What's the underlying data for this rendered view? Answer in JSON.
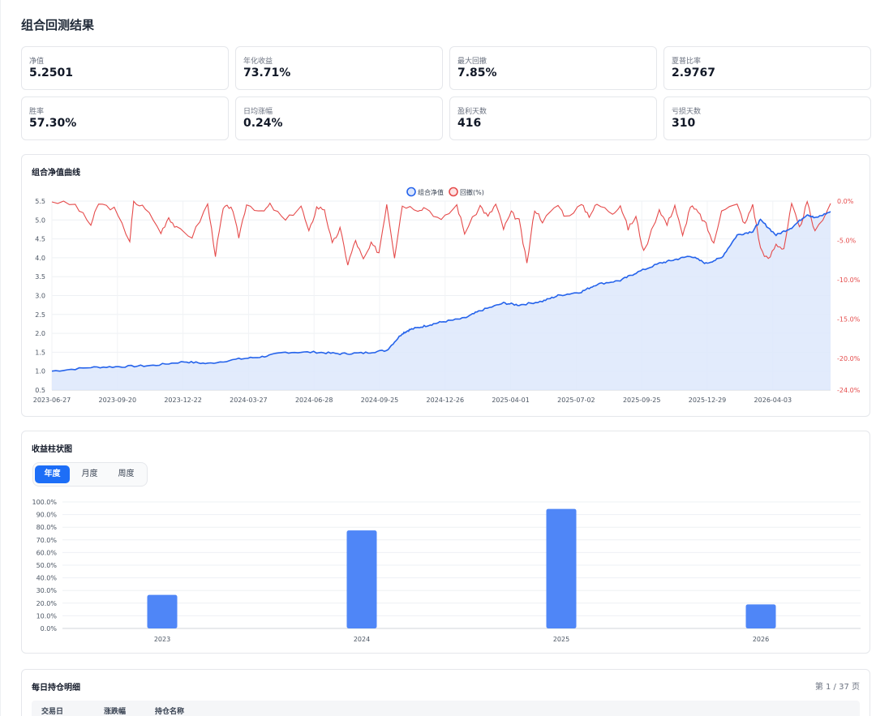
{
  "page": {
    "title": "组合回测结果"
  },
  "metrics": [
    {
      "label": "净值",
      "value": "5.2501"
    },
    {
      "label": "年化收益",
      "value": "73.71%"
    },
    {
      "label": "最大回撤",
      "value": "7.85%"
    },
    {
      "label": "夏普比率",
      "value": "2.9767"
    },
    {
      "label": "胜率",
      "value": "57.30%"
    },
    {
      "label": "日均涨幅",
      "value": "0.24%"
    },
    {
      "label": "盈利天数",
      "value": "416"
    },
    {
      "label": "亏损天数",
      "value": "310"
    }
  ],
  "nav_chart": {
    "title": "组合净值曲线",
    "legend": [
      "组合净值",
      "回撤(%)"
    ],
    "colors": {
      "nav": "#2563eb",
      "drawdown": "#e54b4b",
      "fill": "#dde7fb"
    }
  },
  "bar_section": {
    "title": "收益柱状图",
    "tabs": [
      "年度",
      "月度",
      "周度"
    ],
    "active_tab": "年度"
  },
  "holdings": {
    "title": "每日持仓明细",
    "pager": "第 1 / 37 页",
    "columns": [
      "交易日",
      "涨跌幅",
      "持仓名称"
    ]
  },
  "chart_data": [
    {
      "type": "line",
      "title": "组合净值曲线",
      "x_ticks": [
        "2023-06-27",
        "2023-09-20",
        "2023-12-22",
        "2024-03-27",
        "2024-06-28",
        "2024-09-25",
        "2024-12-26",
        "2025-04-01",
        "2025-07-02",
        "2025-09-25",
        "2025-12-29",
        "2026-04-03"
      ],
      "y_left_ticks": [
        "0.5",
        "1.0",
        "1.5",
        "2.0",
        "2.5",
        "3.0",
        "3.5",
        "4.0",
        "4.5",
        "5.0",
        "5.5"
      ],
      "y_left_range": [
        0.5,
        5.5
      ],
      "y_right_ticks": [
        "0.0%",
        "-5.0%",
        "-10.0%",
        "-15.0%",
        "-20.0%",
        "-24.0%"
      ],
      "y_right_range": [
        -24.0,
        0.0
      ],
      "grid": true,
      "legend_position": "top-center",
      "series": [
        {
          "name": "组合净值",
          "axis": "left",
          "area": true,
          "x": [
            0,
            0.05,
            0.09,
            0.13,
            0.17,
            0.2,
            0.24,
            0.27,
            0.3,
            0.34,
            0.37,
            0.4,
            0.43,
            0.45,
            0.46,
            0.48,
            0.5,
            0.53,
            0.55,
            0.58,
            0.6,
            0.63,
            0.65,
            0.68,
            0.7,
            0.73,
            0.75,
            0.78,
            0.8,
            0.82,
            0.84,
            0.86,
            0.88,
            0.9,
            0.91,
            0.93,
            0.95,
            0.97,
            0.98,
            1.0
          ],
          "values": [
            1.0,
            1.1,
            1.12,
            1.15,
            1.25,
            1.2,
            1.32,
            1.38,
            1.5,
            1.5,
            1.46,
            1.48,
            1.55,
            2.0,
            2.1,
            2.2,
            2.3,
            2.4,
            2.6,
            2.8,
            2.75,
            2.85,
            3.0,
            3.1,
            3.3,
            3.4,
            3.6,
            3.85,
            3.95,
            4.05,
            3.85,
            4.0,
            4.6,
            4.7,
            5.0,
            4.6,
            4.8,
            5.15,
            5.05,
            5.22
          ]
        },
        {
          "name": "回撤(%)",
          "axis": "right",
          "x": [
            0,
            0.03,
            0.05,
            0.06,
            0.08,
            0.1,
            0.105,
            0.12,
            0.14,
            0.15,
            0.16,
            0.18,
            0.2,
            0.21,
            0.22,
            0.23,
            0.24,
            0.25,
            0.27,
            0.28,
            0.3,
            0.32,
            0.33,
            0.34,
            0.35,
            0.36,
            0.37,
            0.38,
            0.39,
            0.4,
            0.41,
            0.42,
            0.43,
            0.44,
            0.45,
            0.47,
            0.48,
            0.5,
            0.52,
            0.53,
            0.55,
            0.56,
            0.57,
            0.58,
            0.59,
            0.6,
            0.61,
            0.62,
            0.63,
            0.65,
            0.66,
            0.68,
            0.69,
            0.7,
            0.72,
            0.73,
            0.74,
            0.75,
            0.76,
            0.78,
            0.79,
            0.8,
            0.81,
            0.82,
            0.83,
            0.84,
            0.85,
            0.86,
            0.88,
            0.89,
            0.9,
            0.91,
            0.92,
            0.93,
            0.94,
            0.95,
            0.96,
            0.97,
            0.98,
            1.0
          ],
          "values": [
            0,
            -0.5,
            -3.0,
            -0.3,
            -1.0,
            -5.0,
            -0.2,
            -0.8,
            -4.0,
            -2.0,
            -3.5,
            -4.5,
            -0.4,
            -6.8,
            -1.0,
            -0.6,
            -4.5,
            -0.3,
            -1.5,
            -0.5,
            -2.5,
            -0.6,
            -4.0,
            -0.8,
            -1.0,
            -5.5,
            -3.5,
            -8.0,
            -5.0,
            -7.5,
            -5.5,
            -6.5,
            -0.3,
            -7.0,
            -0.5,
            -1.0,
            -0.8,
            -2.5,
            -0.5,
            -4.0,
            -0.6,
            -2.0,
            -0.4,
            -3.5,
            -1.5,
            -2.5,
            -8.0,
            -1.0,
            -2.5,
            -0.5,
            -2.0,
            -0.5,
            -1.8,
            -0.4,
            -1.5,
            -0.5,
            -3.5,
            -2.0,
            -6.5,
            -1.0,
            -3.0,
            -0.5,
            -4.5,
            -0.6,
            -1.5,
            -3.0,
            -5.5,
            -1.0,
            -0.5,
            -3.0,
            -0.4,
            -6.0,
            -7.5,
            -5.5,
            -6.0,
            -0.4,
            -3.5,
            -0.2,
            -4.0,
            -0.3
          ]
        }
      ]
    },
    {
      "type": "bar",
      "title": "收益柱状图",
      "categories": [
        "2023",
        "2024",
        "2025",
        "2026"
      ],
      "values": [
        26.5,
        77.5,
        94.5,
        19.0
      ],
      "y_ticks": [
        "0.0%",
        "10.0%",
        "20.0%",
        "30.0%",
        "40.0%",
        "50.0%",
        "60.0%",
        "70.0%",
        "80.0%",
        "90.0%",
        "100.0%"
      ],
      "ylim": [
        0,
        100
      ],
      "grid": true,
      "color": "#4f86f7"
    }
  ]
}
